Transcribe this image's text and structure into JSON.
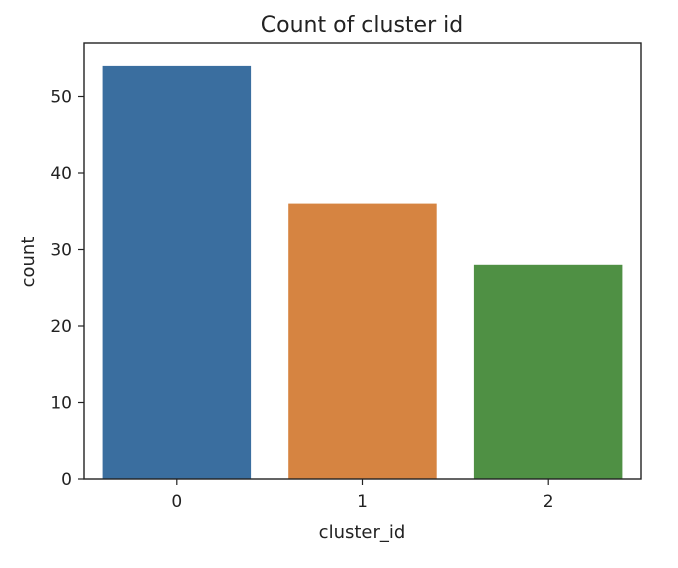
{
  "chart_data": {
    "type": "bar",
    "title": "Count of cluster id",
    "xlabel": "cluster_id",
    "ylabel": "count",
    "categories": [
      "0",
      "1",
      "2"
    ],
    "values": [
      54,
      36,
      28
    ],
    "colors": [
      "#3a6e9f",
      "#d68441",
      "#4f9044"
    ],
    "ylim": [
      0,
      57
    ],
    "yticks": [
      0,
      10,
      20,
      30,
      40,
      50
    ],
    "grid": false,
    "legend": "none"
  }
}
